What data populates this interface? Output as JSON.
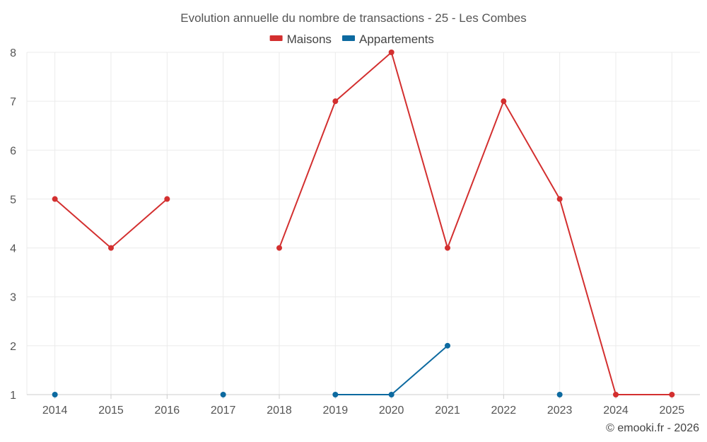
{
  "chart_data": {
    "type": "line",
    "title": "Evolution annuelle du nombre de transactions - 25 - Les Combes",
    "xlabel": "",
    "ylabel": "",
    "categories": [
      "2014",
      "2015",
      "2016",
      "2017",
      "2018",
      "2019",
      "2020",
      "2021",
      "2022",
      "2023",
      "2024",
      "2025"
    ],
    "ylim": [
      1,
      8
    ],
    "yticks": [
      1,
      2,
      3,
      4,
      5,
      6,
      7,
      8
    ],
    "grid": true,
    "legend_position": "top-center",
    "series": [
      {
        "name": "Maisons",
        "color": "#d32f2f",
        "values": [
          5,
          4,
          5,
          null,
          4,
          7,
          8,
          4,
          7,
          5,
          1,
          1
        ]
      },
      {
        "name": "Appartements",
        "color": "#0d6aa0",
        "values": [
          1,
          null,
          null,
          1,
          null,
          1,
          1,
          2,
          null,
          1,
          null,
          null
        ]
      }
    ]
  },
  "credit": "© emooki.fr - 2026"
}
